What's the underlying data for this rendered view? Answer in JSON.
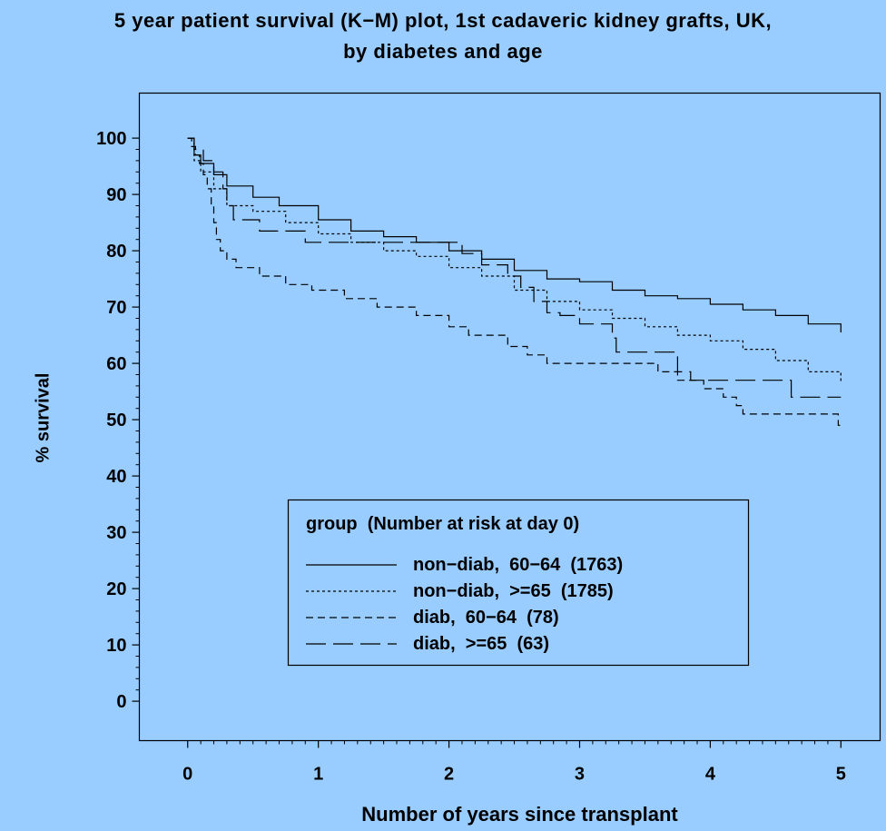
{
  "chart_data": {
    "type": "line",
    "title": "5 year patient survival (K−M) plot, 1st cadaveric kidney grafts, UK,",
    "subtitle": "by diabetes and age",
    "xlabel": "Number of years since transplant",
    "ylabel": "% survival",
    "xlim": [
      -0.37,
      5.3
    ],
    "ylim": [
      -7,
      108
    ],
    "x_ticks": [
      "0",
      "1",
      "2",
      "3",
      "4",
      "5"
    ],
    "y_ticks": [
      "0",
      "10",
      "20",
      "30",
      "40",
      "50",
      "60",
      "70",
      "80",
      "90",
      "100"
    ],
    "grid": false,
    "legend": {
      "title": "group  (Number at risk at day 0)",
      "position": "bottom-center"
    },
    "series": [
      {
        "name": "non−diab,  60−64  (1763)",
        "style": "solid",
        "points": [
          [
            0,
            100
          ],
          [
            0.05,
            97
          ],
          [
            0.1,
            95.5
          ],
          [
            0.2,
            93.5
          ],
          [
            0.3,
            91.5
          ],
          [
            0.5,
            89.5
          ],
          [
            0.7,
            88
          ],
          [
            1.0,
            85.5
          ],
          [
            1.25,
            83.5
          ],
          [
            1.5,
            82.5
          ],
          [
            1.75,
            81.5
          ],
          [
            2.0,
            80
          ],
          [
            2.25,
            78.5
          ],
          [
            2.5,
            76.5
          ],
          [
            2.75,
            75
          ],
          [
            3.0,
            74.5
          ],
          [
            3.25,
            73
          ],
          [
            3.5,
            72
          ],
          [
            3.75,
            71.5
          ],
          [
            4.0,
            70.5
          ],
          [
            4.25,
            69.5
          ],
          [
            4.5,
            68.5
          ],
          [
            4.75,
            67
          ],
          [
            5.0,
            65.5
          ]
        ]
      },
      {
        "name": "non−diab,  >=65  (1785)",
        "style": "dotted",
        "points": [
          [
            0,
            100
          ],
          [
            0.05,
            96
          ],
          [
            0.1,
            94
          ],
          [
            0.2,
            91
          ],
          [
            0.3,
            88
          ],
          [
            0.5,
            87
          ],
          [
            0.75,
            85
          ],
          [
            1.0,
            83
          ],
          [
            1.25,
            81.5
          ],
          [
            1.5,
            80
          ],
          [
            1.75,
            79
          ],
          [
            2.0,
            77
          ],
          [
            2.25,
            75.5
          ],
          [
            2.5,
            73
          ],
          [
            2.75,
            71
          ],
          [
            3.0,
            69.5
          ],
          [
            3.25,
            68
          ],
          [
            3.5,
            66.5
          ],
          [
            3.75,
            65
          ],
          [
            4.0,
            64
          ],
          [
            4.25,
            62.5
          ],
          [
            4.5,
            60.5
          ],
          [
            4.75,
            58.5
          ],
          [
            5.0,
            56.5
          ]
        ]
      },
      {
        "name": "diab,  60−64  (78)",
        "style": "short-dash",
        "points": [
          [
            0,
            100
          ],
          [
            0.03,
            98.5
          ],
          [
            0.06,
            97
          ],
          [
            0.09,
            95.5
          ],
          [
            0.12,
            93.5
          ],
          [
            0.15,
            91
          ],
          [
            0.18,
            88
          ],
          [
            0.2,
            85
          ],
          [
            0.22,
            82
          ],
          [
            0.25,
            80
          ],
          [
            0.3,
            78.5
          ],
          [
            0.37,
            77
          ],
          [
            0.55,
            75.5
          ],
          [
            0.75,
            74
          ],
          [
            0.95,
            73
          ],
          [
            1.2,
            71.5
          ],
          [
            1.45,
            70
          ],
          [
            1.75,
            68.5
          ],
          [
            2.0,
            66.5
          ],
          [
            2.15,
            65
          ],
          [
            2.45,
            63
          ],
          [
            2.6,
            61.5
          ],
          [
            2.75,
            60
          ],
          [
            3.6,
            58.5
          ],
          [
            3.75,
            57
          ],
          [
            3.95,
            55.5
          ],
          [
            4.1,
            54
          ],
          [
            4.2,
            52.5
          ],
          [
            4.25,
            51
          ],
          [
            4.98,
            49
          ],
          [
            5.0,
            49
          ]
        ]
      },
      {
        "name": "diab,  >=65  (63)",
        "style": "long-dash",
        "points": [
          [
            0,
            100
          ],
          [
            0.05,
            98
          ],
          [
            0.12,
            96
          ],
          [
            0.2,
            94
          ],
          [
            0.27,
            91
          ],
          [
            0.3,
            88
          ],
          [
            0.35,
            85.5
          ],
          [
            0.55,
            83.5
          ],
          [
            0.9,
            81.5
          ],
          [
            1.0,
            81.5
          ],
          [
            1.95,
            81.5
          ],
          [
            2.1,
            79.5
          ],
          [
            2.25,
            77.5
          ],
          [
            2.45,
            75.5
          ],
          [
            2.55,
            73.5
          ],
          [
            2.65,
            71
          ],
          [
            2.75,
            69
          ],
          [
            2.85,
            68.5
          ],
          [
            3.0,
            67
          ],
          [
            3.25,
            64.5
          ],
          [
            3.28,
            62
          ],
          [
            3.55,
            62
          ],
          [
            3.75,
            58.5
          ],
          [
            3.85,
            57
          ],
          [
            4.6,
            57
          ],
          [
            4.62,
            54
          ],
          [
            5.0,
            54
          ]
        ]
      }
    ]
  }
}
